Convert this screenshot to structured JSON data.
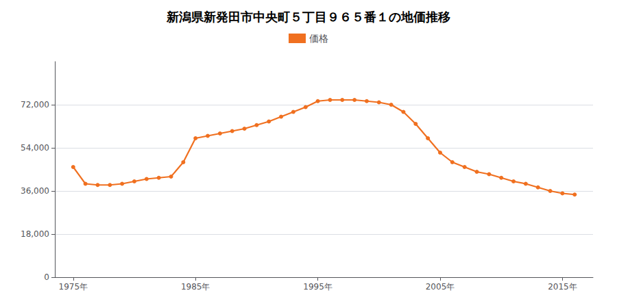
{
  "chart_data": {
    "type": "line",
    "title": "新潟県新発田市中央町５丁目９６５番１の地価推移",
    "x": [
      1975,
      1976,
      1977,
      1978,
      1979,
      1980,
      1981,
      1982,
      1983,
      1984,
      1985,
      1986,
      1987,
      1988,
      1989,
      1990,
      1991,
      1992,
      1993,
      1994,
      1995,
      1996,
      1997,
      1998,
      1999,
      2000,
      2001,
      2002,
      2003,
      2004,
      2005,
      2006,
      2007,
      2008,
      2009,
      2010,
      2011,
      2012,
      2013,
      2014,
      2015,
      2016
    ],
    "series": [
      {
        "name": "価格",
        "color": "#f07020",
        "marker": "circle",
        "values": [
          46000,
          39000,
          38500,
          38500,
          39000,
          40000,
          41000,
          41500,
          42000,
          48000,
          58000,
          59000,
          60000,
          61000,
          62000,
          63500,
          65000,
          67000,
          69000,
          71000,
          73500,
          74000,
          74000,
          74000,
          73500,
          73000,
          72000,
          69000,
          64000,
          58000,
          52000,
          48000,
          46000,
          44000,
          43000,
          41500,
          40000,
          39000,
          37500,
          36000,
          35000,
          34500
        ]
      }
    ],
    "xlim": [
      1973.5,
      2017.5
    ],
    "xticks": [
      {
        "value": 1975,
        "label": "1975年"
      },
      {
        "value": 1985,
        "label": "1985年"
      },
      {
        "value": 1995,
        "label": "1995年"
      },
      {
        "value": 2005,
        "label": "2005年"
      },
      {
        "value": 2015,
        "label": "2015年"
      }
    ],
    "ylim": [
      0,
      90000
    ],
    "yticks": [
      0,
      {
        "value": 18000,
        "label": "18,000"
      },
      {
        "value": 36000,
        "label": "36,000"
      },
      {
        "value": 54000,
        "label": "54,000"
      },
      {
        "value": 72000,
        "label": "72,000"
      }
    ],
    "grid": true,
    "legend": "top"
  }
}
